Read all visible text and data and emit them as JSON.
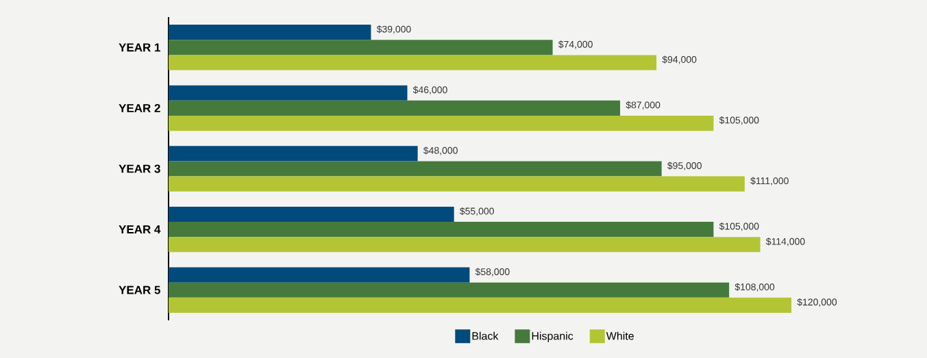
{
  "chart_data": {
    "type": "bar",
    "orientation": "horizontal",
    "legend": "bottom",
    "categories": [
      "YEAR 1",
      "YEAR 2",
      "YEAR 3",
      "YEAR 4",
      "YEAR 5"
    ],
    "series": [
      {
        "name": "Black",
        "color": "#004a7c",
        "values": [
          39000,
          46000,
          48000,
          55000,
          58000
        ],
        "value_labels": [
          "$39,000",
          "$46,000",
          "$48,000",
          "$55,000",
          "$58,000"
        ]
      },
      {
        "name": "Hispanic",
        "color": "#457a3c",
        "values": [
          74000,
          87000,
          95000,
          105000,
          108000
        ],
        "value_labels": [
          "$74,000",
          "$87,000",
          "$95,000",
          "$105,000",
          "$108,000"
        ]
      },
      {
        "name": "White",
        "color": "#b3c535",
        "values": [
          94000,
          105000,
          111000,
          114000,
          120000
        ],
        "value_labels": [
          "$94,000",
          "$105,000",
          "$111,000",
          "$114,000",
          "$120,000"
        ]
      }
    ]
  }
}
